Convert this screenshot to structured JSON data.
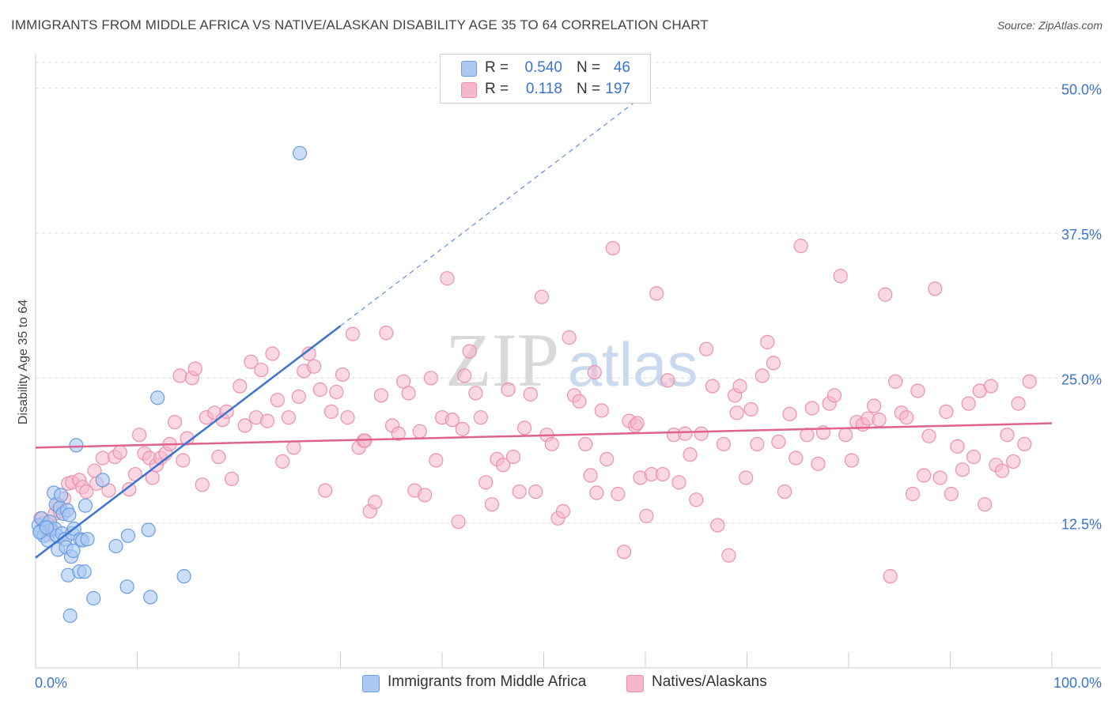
{
  "title": "IMMIGRANTS FROM MIDDLE AFRICA VS NATIVE/ALASKAN DISABILITY AGE 35 TO 64 CORRELATION CHART",
  "source": "Source: ZipAtlas.com",
  "watermark": {
    "zip": "ZIP",
    "atlas": "atlas"
  },
  "colors": {
    "blue": "#3b73d1",
    "blue_fill": "#aac8f2",
    "blue_stroke": "#6a9de3",
    "pink": "#e0628f",
    "pink_fill": "#f5b8ca",
    "pink_stroke": "#ee8fb0",
    "tick_label": "#3b73d1",
    "grid": "#dcdcdc"
  },
  "legend": {
    "rows": [
      {
        "r_label": "R =",
        "r_value": "0.540",
        "n_label": "N =",
        "n_value": "46",
        "color": "#aac8f2"
      },
      {
        "r_label": "R =",
        "r_value": "0.118",
        "n_label": "N =",
        "n_value": "197",
        "color": "#f5b8ca"
      }
    ]
  },
  "bottom_legend": {
    "series1": "Immigrants from Middle Africa",
    "series2": "Natives/Alaskans"
  },
  "chart_data": {
    "type": "scatter",
    "title": "IMMIGRANTS FROM MIDDLE AFRICA VS NATIVE/ALASKAN DISABILITY AGE 35 TO 64 CORRELATION CHART",
    "xlabel": "",
    "ylabel": "Disability Age 35 to 64",
    "xlim": [
      0,
      100
    ],
    "ylim": [
      0,
      52.5
    ],
    "x_tick_labels": {
      "left": "0.0%",
      "right": "100.0%"
    },
    "y_ticks": [
      12.5,
      25.0,
      37.5,
      50.0
    ],
    "y_tick_labels": [
      "12.5%",
      "25.0%",
      "37.5%",
      "50.0%"
    ],
    "grid": true,
    "series": [
      {
        "name": "Immigrants from Middle Africa",
        "r": 0.54,
        "n": 46,
        "trend": {
          "x0": 0,
          "y0": 9.5,
          "x1": 30,
          "y1": 29.5,
          "dashed_to_x": 60
        },
        "points": [
          [
            0.3,
            12.3
          ],
          [
            0.5,
            11.8
          ],
          [
            0.6,
            12.9
          ],
          [
            0.8,
            11.4
          ],
          [
            1.0,
            12.2
          ],
          [
            1.2,
            11.0
          ],
          [
            1.4,
            12.6
          ],
          [
            1.5,
            11.9
          ],
          [
            1.8,
            15.1
          ],
          [
            1.9,
            12.0
          ],
          [
            2.0,
            14.1
          ],
          [
            2.1,
            11.4
          ],
          [
            2.2,
            10.2
          ],
          [
            2.4,
            13.8
          ],
          [
            2.5,
            14.9
          ],
          [
            2.6,
            11.6
          ],
          [
            2.7,
            13.3
          ],
          [
            2.9,
            11.1
          ],
          [
            3.0,
            10.4
          ],
          [
            3.1,
            13.6
          ],
          [
            3.2,
            8.0
          ],
          [
            3.3,
            13.2
          ],
          [
            3.4,
            4.5
          ],
          [
            3.5,
            9.6
          ],
          [
            3.6,
            11.6
          ],
          [
            3.7,
            10.1
          ],
          [
            3.8,
            12.0
          ],
          [
            4.0,
            19.2
          ],
          [
            4.3,
            8.3
          ],
          [
            4.4,
            11.1
          ],
          [
            4.6,
            11.0
          ],
          [
            4.8,
            8.3
          ],
          [
            4.9,
            14.0
          ],
          [
            5.1,
            11.1
          ],
          [
            5.7,
            6.0
          ],
          [
            6.6,
            16.2
          ],
          [
            7.9,
            10.5
          ],
          [
            9.0,
            7.0
          ],
          [
            9.1,
            11.4
          ],
          [
            11.1,
            11.9
          ],
          [
            11.3,
            6.1
          ],
          [
            12.0,
            23.3
          ],
          [
            14.6,
            7.9
          ],
          [
            26.0,
            44.4
          ],
          [
            0.4,
            11.7
          ],
          [
            1.1,
            12.1
          ]
        ]
      },
      {
        "name": "Natives/Alaskans",
        "r": 0.118,
        "n": 197,
        "trend": {
          "x0": 0,
          "y0": 19.0,
          "x1": 100,
          "y1": 21.1
        },
        "points": [
          [
            0.5,
            12.9
          ],
          [
            0.8,
            12.5
          ],
          [
            1.2,
            11.5
          ],
          [
            1.5,
            12.1
          ],
          [
            1.9,
            13.3
          ],
          [
            2.2,
            14.1
          ],
          [
            2.4,
            13.5
          ],
          [
            2.8,
            14.6
          ],
          [
            3.2,
            15.9
          ],
          [
            3.6,
            16.0
          ],
          [
            4.3,
            16.2
          ],
          [
            4.6,
            15.6
          ],
          [
            5.0,
            15.2
          ],
          [
            5.8,
            17.0
          ],
          [
            6.0,
            15.9
          ],
          [
            6.6,
            18.1
          ],
          [
            7.2,
            15.3
          ],
          [
            7.8,
            18.2
          ],
          [
            8.3,
            18.6
          ],
          [
            9.2,
            15.4
          ],
          [
            9.8,
            16.7
          ],
          [
            10.2,
            20.1
          ],
          [
            10.7,
            18.5
          ],
          [
            11.2,
            18.1
          ],
          [
            11.5,
            16.4
          ],
          [
            11.9,
            17.5
          ],
          [
            12.3,
            18.1
          ],
          [
            12.8,
            18.5
          ],
          [
            13.2,
            19.3
          ],
          [
            13.7,
            21.2
          ],
          [
            14.2,
            25.2
          ],
          [
            14.5,
            17.9
          ],
          [
            14.9,
            19.8
          ],
          [
            15.4,
            25.0
          ],
          [
            15.7,
            25.8
          ],
          [
            16.4,
            15.8
          ],
          [
            16.8,
            21.6
          ],
          [
            17.6,
            22.0
          ],
          [
            18.0,
            18.2
          ],
          [
            18.4,
            21.4
          ],
          [
            18.8,
            22.1
          ],
          [
            19.3,
            16.3
          ],
          [
            20.1,
            24.3
          ],
          [
            20.6,
            20.9
          ],
          [
            21.2,
            26.4
          ],
          [
            21.7,
            21.6
          ],
          [
            22.2,
            25.7
          ],
          [
            22.8,
            21.3
          ],
          [
            23.3,
            27.1
          ],
          [
            23.8,
            23.1
          ],
          [
            24.3,
            17.8
          ],
          [
            24.9,
            21.6
          ],
          [
            25.4,
            19.0
          ],
          [
            25.9,
            23.4
          ],
          [
            26.4,
            25.6
          ],
          [
            26.9,
            27.1
          ],
          [
            27.4,
            26.0
          ],
          [
            28.0,
            24.0
          ],
          [
            28.5,
            15.3
          ],
          [
            29.1,
            22.1
          ],
          [
            29.6,
            23.8
          ],
          [
            30.2,
            25.3
          ],
          [
            30.7,
            21.6
          ],
          [
            31.2,
            28.8
          ],
          [
            31.8,
            19.0
          ],
          [
            32.3,
            19.6
          ],
          [
            32.9,
            13.5
          ],
          [
            33.4,
            14.3
          ],
          [
            34.0,
            23.5
          ],
          [
            34.5,
            28.9
          ],
          [
            35.1,
            20.9
          ],
          [
            35.7,
            20.2
          ],
          [
            36.2,
            24.7
          ],
          [
            36.7,
            23.7
          ],
          [
            37.3,
            15.3
          ],
          [
            37.8,
            20.4
          ],
          [
            38.3,
            14.9
          ],
          [
            38.9,
            25.0
          ],
          [
            39.4,
            17.9
          ],
          [
            40.0,
            21.6
          ],
          [
            40.5,
            33.6
          ],
          [
            41.0,
            21.4
          ],
          [
            41.6,
            12.6
          ],
          [
            42.2,
            25.2
          ],
          [
            42.7,
            27.3
          ],
          [
            43.3,
            23.7
          ],
          [
            43.8,
            21.6
          ],
          [
            44.3,
            16.0
          ],
          [
            44.9,
            14.1
          ],
          [
            45.4,
            18.0
          ],
          [
            46.0,
            17.5
          ],
          [
            46.5,
            24.0
          ],
          [
            47.0,
            18.2
          ],
          [
            47.6,
            15.2
          ],
          [
            48.1,
            20.7
          ],
          [
            48.7,
            23.6
          ],
          [
            49.2,
            15.2
          ],
          [
            49.8,
            32.0
          ],
          [
            50.3,
            20.1
          ],
          [
            50.8,
            19.3
          ],
          [
            51.4,
            12.9
          ],
          [
            51.9,
            13.5
          ],
          [
            52.5,
            28.5
          ],
          [
            53.0,
            23.5
          ],
          [
            53.5,
            23.0
          ],
          [
            54.1,
            19.3
          ],
          [
            54.6,
            16.6
          ],
          [
            55.2,
            15.1
          ],
          [
            55.7,
            22.2
          ],
          [
            56.2,
            18.0
          ],
          [
            56.8,
            36.2
          ],
          [
            57.3,
            15.0
          ],
          [
            57.9,
            10.0
          ],
          [
            58.4,
            21.3
          ],
          [
            59.0,
            20.9
          ],
          [
            59.5,
            16.4
          ],
          [
            60.1,
            13.1
          ],
          [
            60.6,
            16.7
          ],
          [
            61.1,
            32.3
          ],
          [
            61.7,
            16.7
          ],
          [
            62.2,
            24.8
          ],
          [
            62.8,
            20.1
          ],
          [
            63.3,
            16.0
          ],
          [
            63.9,
            20.2
          ],
          [
            64.4,
            18.4
          ],
          [
            65.0,
            14.5
          ],
          [
            65.5,
            20.2
          ],
          [
            66.0,
            27.5
          ],
          [
            66.6,
            24.3
          ],
          [
            67.1,
            12.3
          ],
          [
            67.7,
            19.3
          ],
          [
            68.2,
            9.7
          ],
          [
            68.8,
            23.5
          ],
          [
            69.3,
            24.3
          ],
          [
            69.9,
            16.4
          ],
          [
            70.4,
            22.3
          ],
          [
            71.0,
            19.3
          ],
          [
            71.5,
            25.2
          ],
          [
            72.0,
            28.1
          ],
          [
            72.6,
            26.3
          ],
          [
            73.1,
            19.5
          ],
          [
            73.7,
            15.2
          ],
          [
            74.2,
            21.9
          ],
          [
            74.8,
            18.1
          ],
          [
            75.3,
            36.4
          ],
          [
            75.9,
            20.1
          ],
          [
            76.4,
            22.4
          ],
          [
            77.0,
            17.6
          ],
          [
            77.5,
            20.3
          ],
          [
            78.1,
            22.8
          ],
          [
            78.6,
            23.5
          ],
          [
            79.2,
            33.8
          ],
          [
            79.7,
            20.1
          ],
          [
            80.3,
            17.9
          ],
          [
            80.8,
            21.2
          ],
          [
            81.4,
            21.0
          ],
          [
            81.9,
            21.5
          ],
          [
            82.5,
            22.6
          ],
          [
            83.0,
            21.4
          ],
          [
            83.6,
            32.2
          ],
          [
            84.1,
            7.9
          ],
          [
            84.6,
            24.7
          ],
          [
            85.2,
            22.0
          ],
          [
            85.7,
            21.6
          ],
          [
            86.3,
            15.0
          ],
          [
            86.8,
            23.9
          ],
          [
            87.4,
            16.6
          ],
          [
            87.9,
            20.0
          ],
          [
            88.5,
            32.7
          ],
          [
            89.0,
            16.4
          ],
          [
            89.6,
            22.1
          ],
          [
            90.1,
            15.0
          ],
          [
            90.7,
            19.1
          ],
          [
            91.2,
            17.1
          ],
          [
            91.8,
            22.8
          ],
          [
            92.3,
            18.2
          ],
          [
            92.9,
            23.9
          ],
          [
            93.4,
            14.1
          ],
          [
            94.0,
            24.3
          ],
          [
            94.5,
            17.5
          ],
          [
            95.1,
            17.0
          ],
          [
            95.6,
            20.1
          ],
          [
            96.2,
            17.8
          ],
          [
            96.7,
            22.8
          ],
          [
            97.3,
            19.3
          ],
          [
            97.8,
            24.7
          ],
          [
            59.2,
            21.1
          ],
          [
            32.4,
            19.6
          ],
          [
            42.0,
            20.6
          ],
          [
            55.0,
            25.5
          ],
          [
            69.0,
            22.0
          ]
        ]
      }
    ]
  }
}
